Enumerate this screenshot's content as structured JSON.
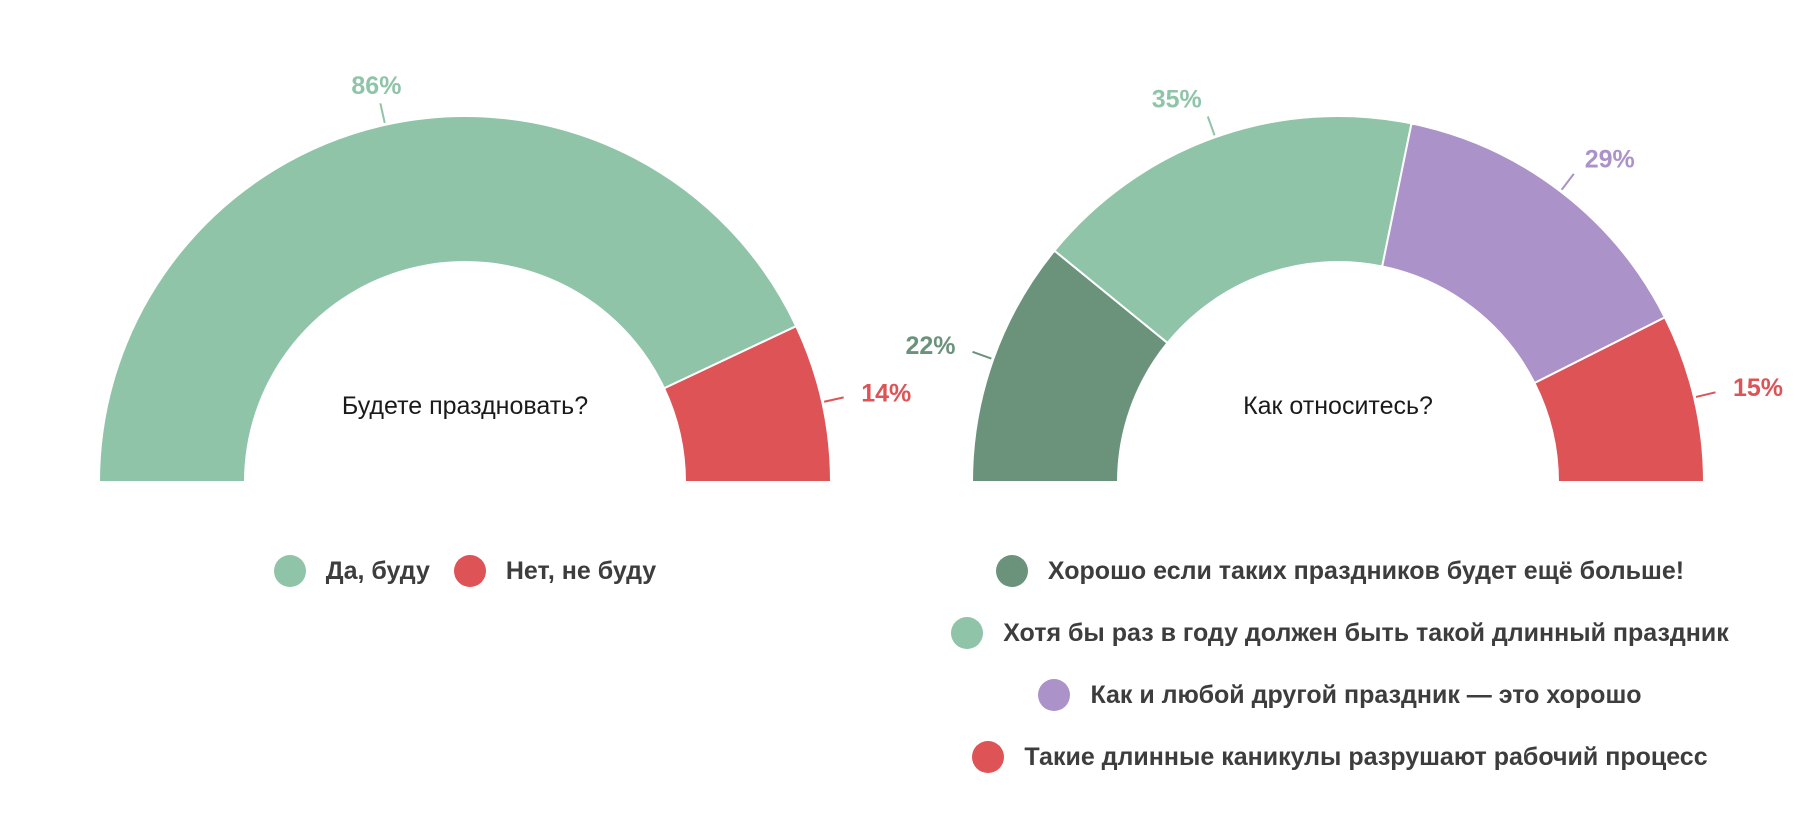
{
  "chart_data": [
    {
      "type": "pie",
      "variant": "semicircle-donut",
      "center_label": "Будете праздновать?",
      "categories": [
        "Да, буду",
        "Нет, не буду"
      ],
      "values": [
        86,
        14
      ],
      "value_labels": [
        "86%",
        "14%"
      ],
      "colors": [
        "#8fc4a8",
        "#dd5356"
      ],
      "legend_placement": "bottom"
    },
    {
      "type": "pie",
      "variant": "semicircle-donut",
      "center_label": "Как относитесь?",
      "categories": [
        "Хорошо если таких праздников будет ещё больше!",
        "Хотя бы раз в году должен быть такой длинный праздник",
        "Как и любой другой праздник — это хорошо",
        "Такие длинные каникулы разрушают рабочий процесс"
      ],
      "values": [
        22,
        35,
        29,
        15
      ],
      "value_labels": [
        "22%",
        "35%",
        "29%",
        "15%"
      ],
      "colors": [
        "#6b937c",
        "#8fc4a8",
        "#ab92c8",
        "#dd5356"
      ],
      "legend_placement": "bottom"
    }
  ]
}
